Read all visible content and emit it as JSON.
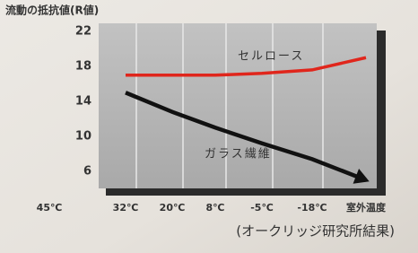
{
  "chart_data": {
    "type": "line",
    "title": "流動の抵抗値(R値)",
    "source": "(オークリッジ研究所結果)",
    "categories": [
      "45℃",
      "32℃",
      "20℃",
      "8℃",
      "-5℃",
      "-18℃",
      "室外温度"
    ],
    "series": [
      {
        "name": "セルロース",
        "color": "#e0261c",
        "values": [
          null,
          17,
          17,
          17,
          17.2,
          17.6,
          19
        ]
      },
      {
        "name": "ガラス繊維",
        "color": "#111111",
        "values": [
          null,
          15,
          12.8,
          11,
          9.2,
          7.4,
          5
        ]
      }
    ],
    "ylim": [
      4,
      23
    ],
    "yticks": [
      22,
      18,
      14,
      10,
      6
    ],
    "grid": true
  }
}
